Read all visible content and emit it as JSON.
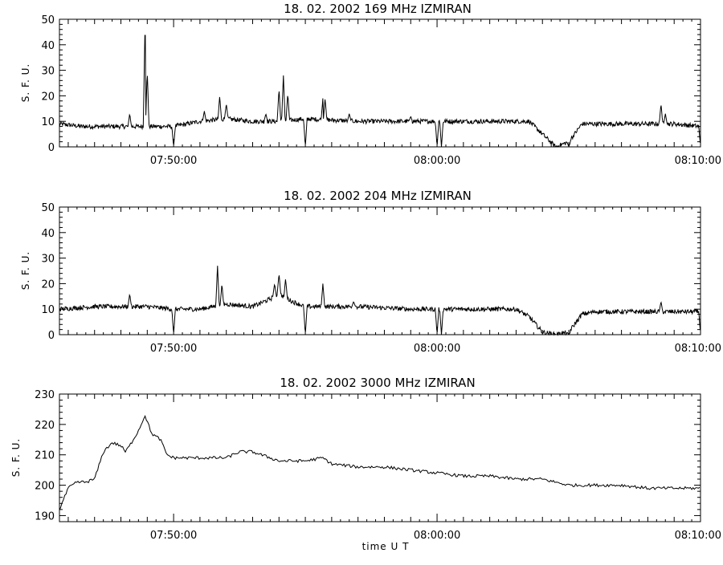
{
  "chart_data": [
    {
      "type": "line",
      "title": "18.  02.  2002    169  MHz    IZMIRAN",
      "ylabel": "S. F. U.",
      "xlabel": "",
      "xlim": [
        "07:45:40",
        "08:10:00"
      ],
      "ylim": [
        0,
        50
      ],
      "yticks": [
        0,
        10,
        20,
        30,
        40,
        50
      ],
      "yticklabels": [
        "0",
        "10",
        "20",
        "30",
        "40",
        "50"
      ],
      "xticks": [
        "07:50:00",
        "08:00:00",
        "08:10:00"
      ],
      "xticklabels": [
        "07:50:00",
        "08:00:00",
        "08:10:00"
      ],
      "baseline": [
        [
          "07:45:40",
          9
        ],
        [
          "07:46:30",
          8
        ],
        [
          "07:48:00",
          8
        ],
        [
          "07:49:00",
          8
        ],
        [
          "07:50:00",
          8
        ],
        [
          "07:51:00",
          10
        ],
        [
          "07:52:00",
          11
        ],
        [
          "07:53:00",
          10
        ],
        [
          "07:54:00",
          10
        ],
        [
          "07:55:00",
          11
        ],
        [
          "07:57:00",
          10
        ],
        [
          "07:59:00",
          10
        ],
        [
          "08:00:00",
          10
        ],
        [
          "08:03:30",
          10
        ],
        [
          "08:04:00",
          5
        ],
        [
          "08:04:30",
          0
        ],
        [
          "08:05:00",
          2
        ],
        [
          "08:05:30",
          9
        ],
        [
          "08:06:00",
          9
        ],
        [
          "08:08:30",
          9
        ],
        [
          "08:09:00",
          9
        ],
        [
          "08:10:00",
          8
        ]
      ],
      "spikes": [
        {
          "x": "07:48:20",
          "y": 13
        },
        {
          "x": "07:48:55",
          "y": 50
        },
        {
          "x": "07:49:00",
          "y": 30
        },
        {
          "x": "07:51:10",
          "y": 14
        },
        {
          "x": "07:51:45",
          "y": 20
        },
        {
          "x": "07:52:00",
          "y": 17
        },
        {
          "x": "07:53:30",
          "y": 13
        },
        {
          "x": "07:54:00",
          "y": 23
        },
        {
          "x": "07:54:10",
          "y": 28
        },
        {
          "x": "07:54:20",
          "y": 21
        },
        {
          "x": "07:55:40",
          "y": 19
        },
        {
          "x": "07:55:45",
          "y": 19
        },
        {
          "x": "07:56:40",
          "y": 13
        },
        {
          "x": "07:59:00",
          "y": 12
        },
        {
          "x": "08:08:30",
          "y": 17
        },
        {
          "x": "08:08:40",
          "y": 13
        }
      ],
      "dips": [
        {
          "x": "07:50:00",
          "y": 0
        },
        {
          "x": "07:55:00",
          "y": 0
        },
        {
          "x": "08:00:00",
          "y": 0
        },
        {
          "x": "08:00:10",
          "y": 0
        },
        {
          "x": "08:05:00",
          "y": 0
        },
        {
          "x": "08:10:00",
          "y": 0
        }
      ]
    },
    {
      "type": "line",
      "title": "18.  02.  2002    204  MHz    IZMIRAN",
      "ylabel": "S. F. U.",
      "xlabel": "",
      "xlim": [
        "07:45:40",
        "08:10:00"
      ],
      "ylim": [
        0,
        50
      ],
      "yticks": [
        0,
        10,
        20,
        30,
        40,
        50
      ],
      "yticklabels": [
        "0",
        "10",
        "20",
        "30",
        "40",
        "50"
      ],
      "xticks": [
        "07:50:00",
        "08:00:00",
        "08:10:00"
      ],
      "xticklabels": [
        "07:50:00",
        "08:00:00",
        "08:10:00"
      ],
      "baseline": [
        [
          "07:45:40",
          10
        ],
        [
          "07:47:00",
          11
        ],
        [
          "07:48:00",
          11
        ],
        [
          "07:49:00",
          11
        ],
        [
          "07:50:00",
          10
        ],
        [
          "07:51:00",
          10
        ],
        [
          "07:52:00",
          12
        ],
        [
          "07:53:00",
          11
        ],
        [
          "07:53:40",
          14
        ],
        [
          "07:54:00",
          16
        ],
        [
          "07:54:30",
          13
        ],
        [
          "07:55:00",
          11
        ],
        [
          "07:57:00",
          11
        ],
        [
          "07:59:00",
          10
        ],
        [
          "08:00:00",
          10
        ],
        [
          "08:03:00",
          10
        ],
        [
          "08:03:30",
          7
        ],
        [
          "08:04:00",
          1
        ],
        [
          "08:04:30",
          0
        ],
        [
          "08:05:00",
          1
        ],
        [
          "08:05:30",
          8
        ],
        [
          "08:06:00",
          9
        ],
        [
          "08:08:00",
          9
        ],
        [
          "08:09:00",
          9
        ],
        [
          "08:10:00",
          9
        ]
      ],
      "spikes": [
        {
          "x": "07:48:20",
          "y": 16
        },
        {
          "x": "07:51:40",
          "y": 27
        },
        {
          "x": "07:51:50",
          "y": 20
        },
        {
          "x": "07:53:50",
          "y": 20
        },
        {
          "x": "07:54:00",
          "y": 24
        },
        {
          "x": "07:54:15",
          "y": 22
        },
        {
          "x": "07:55:40",
          "y": 20
        },
        {
          "x": "07:56:50",
          "y": 13
        },
        {
          "x": "08:08:30",
          "y": 13
        }
      ],
      "dips": [
        {
          "x": "07:50:00",
          "y": 0
        },
        {
          "x": "07:55:00",
          "y": 0
        },
        {
          "x": "08:00:00",
          "y": 0
        },
        {
          "x": "08:00:10",
          "y": 0
        },
        {
          "x": "08:05:00",
          "y": 0
        },
        {
          "x": "08:10:00",
          "y": 0
        }
      ]
    },
    {
      "type": "line",
      "title": "18.  02.  2002    3000  MHz    IZMIRAN",
      "ylabel": "S. F. U.",
      "xlabel": "time   U T",
      "xlim": [
        "07:45:40",
        "08:10:00"
      ],
      "ylim": [
        188,
        230
      ],
      "yticks": [
        190,
        200,
        210,
        220,
        230
      ],
      "yticklabels": [
        "190",
        "200",
        "210",
        "220",
        "230"
      ],
      "xticks": [
        "07:50:00",
        "08:00:00",
        "08:10:00"
      ],
      "xticklabels": [
        "07:50:00",
        "08:00:00",
        "08:10:00"
      ],
      "points": [
        [
          "07:45:40",
          192
        ],
        [
          "07:46:00",
          199
        ],
        [
          "07:46:20",
          201
        ],
        [
          "07:46:40",
          201
        ],
        [
          "07:47:00",
          202
        ],
        [
          "07:47:20",
          211
        ],
        [
          "07:47:40",
          214
        ],
        [
          "07:48:00",
          213
        ],
        [
          "07:48:10",
          211
        ],
        [
          "07:48:20",
          213
        ],
        [
          "07:48:40",
          218
        ],
        [
          "07:48:55",
          223
        ],
        [
          "07:49:10",
          217
        ],
        [
          "07:49:30",
          215
        ],
        [
          "07:49:45",
          210
        ],
        [
          "07:50:00",
          209
        ],
        [
          "07:51:00",
          209
        ],
        [
          "07:52:00",
          209
        ],
        [
          "07:52:30",
          211
        ],
        [
          "07:53:00",
          211
        ],
        [
          "07:54:00",
          208
        ],
        [
          "07:55:00",
          208
        ],
        [
          "07:55:40",
          209
        ],
        [
          "07:56:00",
          207
        ],
        [
          "07:57:00",
          206
        ],
        [
          "07:58:00",
          206
        ],
        [
          "07:59:00",
          205
        ],
        [
          "08:00:00",
          204
        ],
        [
          "08:01:00",
          203
        ],
        [
          "08:02:00",
          203
        ],
        [
          "08:03:00",
          202
        ],
        [
          "08:04:00",
          202
        ],
        [
          "08:05:00",
          200
        ],
        [
          "08:06:00",
          200
        ],
        [
          "08:07:00",
          200
        ],
        [
          "08:08:00",
          199
        ],
        [
          "08:09:00",
          199
        ],
        [
          "08:10:00",
          199
        ]
      ]
    }
  ]
}
